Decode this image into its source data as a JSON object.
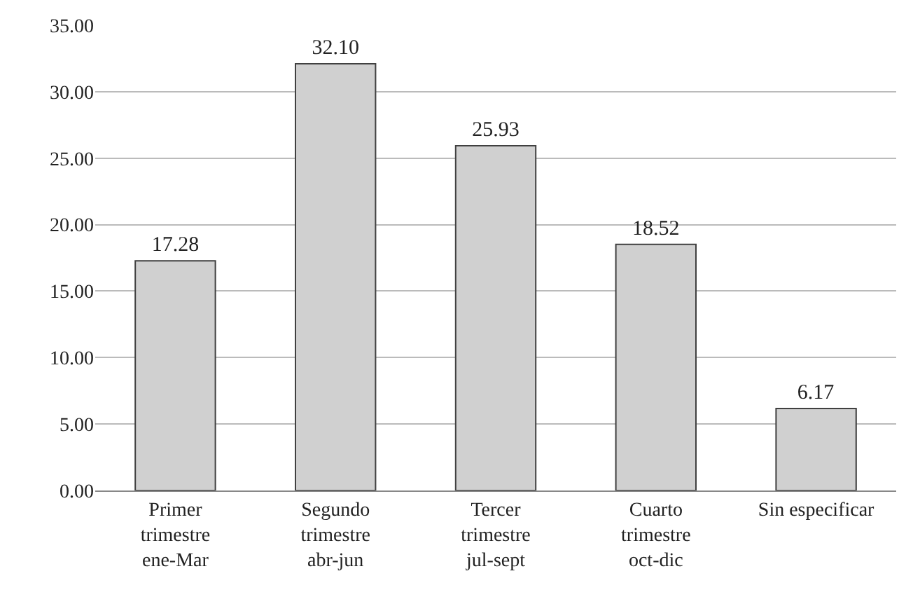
{
  "chart_data": {
    "type": "bar",
    "categories": [
      "Primer\ntrimestre\nene-Mar",
      "Segundo\ntrimestre\nabr-jun",
      "Tercer\ntrimestre\njul-sept",
      "Cuarto\ntrimestre\noct-dic",
      "Sin especificar"
    ],
    "values": [
      17.28,
      32.1,
      25.93,
      18.52,
      6.17
    ],
    "value_labels": [
      "17.28",
      "32.10",
      "25.93",
      "18.52",
      "6.17"
    ],
    "color": "#d0d0d0",
    "ylim": [
      0,
      35
    ],
    "yticks": [
      {
        "value": 0,
        "label": "0.00"
      },
      {
        "value": 5,
        "label": "5.00"
      },
      {
        "value": 10,
        "label": "10.00"
      },
      {
        "value": 15,
        "label": "15.00"
      },
      {
        "value": 20,
        "label": "20.00"
      },
      {
        "value": 25,
        "label": "25.00"
      },
      {
        "value": 30,
        "label": "30.00"
      },
      {
        "value": 35,
        "label": "35.00"
      }
    ],
    "grid": "y",
    "legend": false
  }
}
